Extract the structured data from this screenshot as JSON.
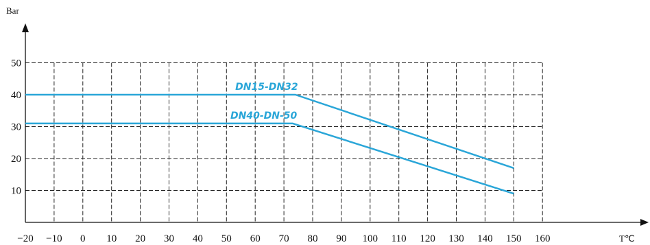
{
  "chart_data": {
    "type": "line",
    "ylabel": "Bar",
    "xlabel": "T℃",
    "xlim": [
      -20,
      160
    ],
    "ylim": [
      0,
      50
    ],
    "x_ticks": [
      -20,
      -10,
      0,
      10,
      20,
      30,
      40,
      50,
      60,
      70,
      80,
      90,
      100,
      110,
      120,
      130,
      140,
      150,
      160
    ],
    "y_ticks": [
      10,
      20,
      30,
      40,
      50
    ],
    "grid": true,
    "line_color": "#2aa6d8",
    "series": [
      {
        "name": "DN15-DN32",
        "x": [
          -20,
          74,
          150
        ],
        "y": [
          40,
          40,
          17
        ]
      },
      {
        "name": "DN40-DN-50",
        "x": [
          -20,
          73,
          150
        ],
        "y": [
          31,
          31,
          9
        ]
      }
    ]
  }
}
